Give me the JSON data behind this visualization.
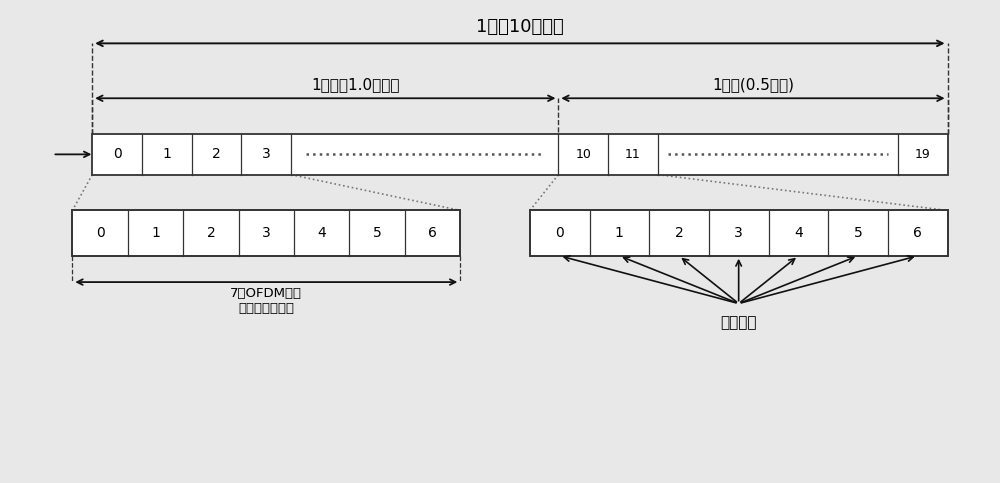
{
  "title": "1帧（10毫秒）",
  "subframe_label": "1子帧（1.0毫秒）",
  "slot_label": "1时隙(0.5毫秒)",
  "ofdm_label": "7个OFDM符号\n（短循环前缀）",
  "cp_label": "循环前缀",
  "bg_color": "#e8e8e8",
  "cell_color": "#ffffff",
  "cell_border": "#333333",
  "arrow_color": "#111111",
  "font_size_title": 13,
  "font_size_label": 11,
  "font_size_cell": 10
}
